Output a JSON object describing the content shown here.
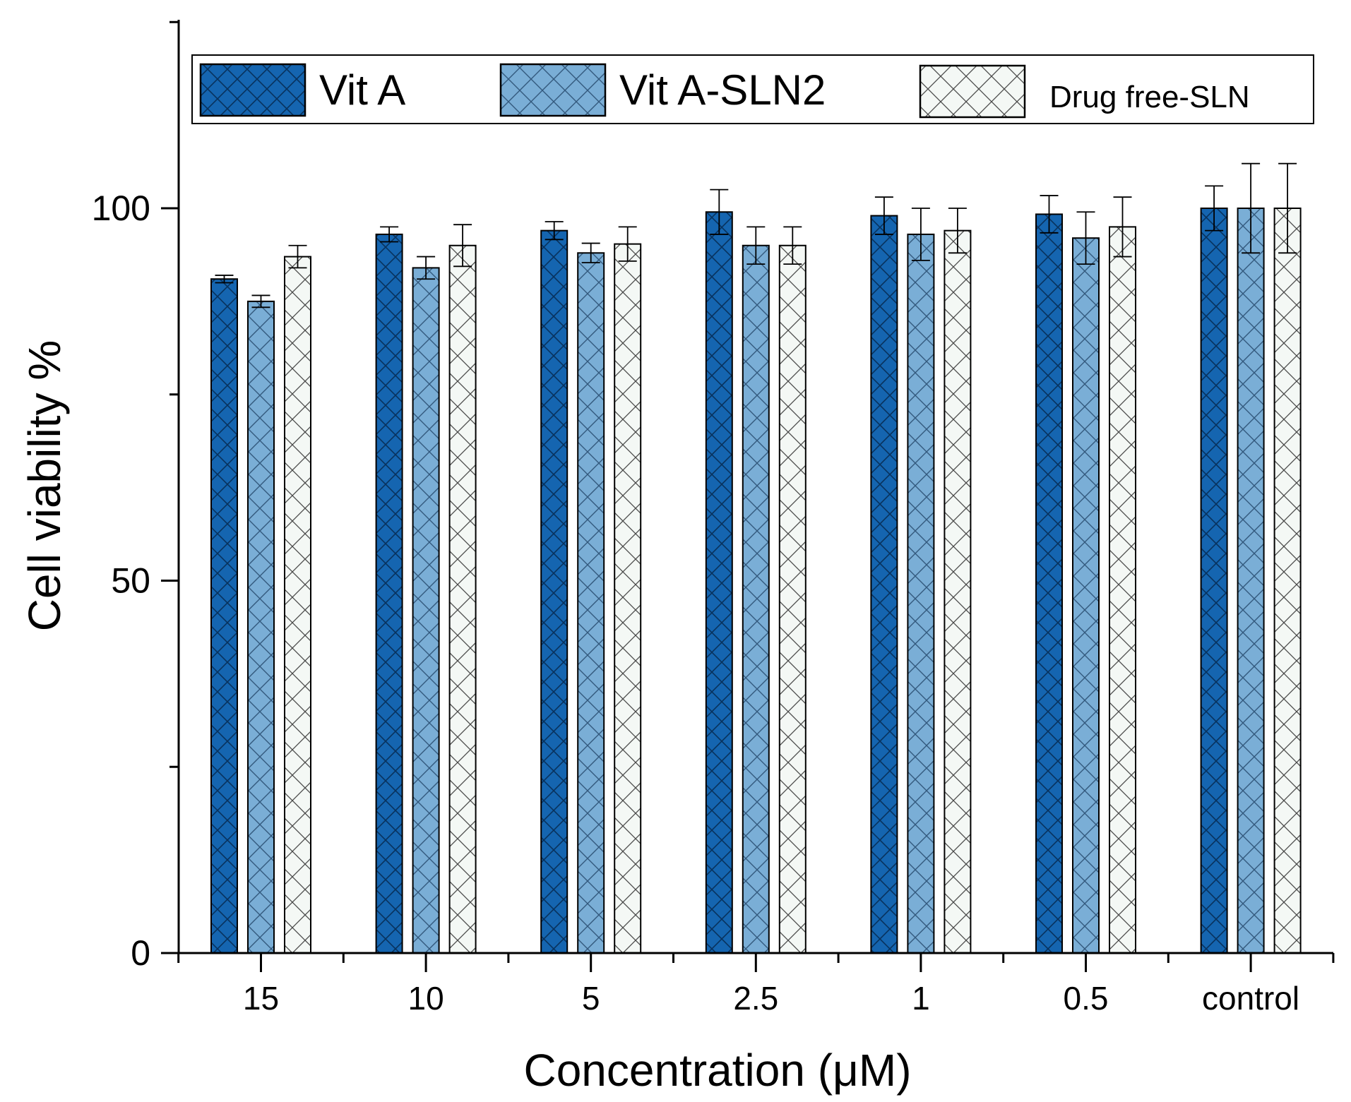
{
  "chart_data": {
    "type": "bar",
    "title": "",
    "xlabel": "Concentration (μM)",
    "ylabel": "Cell viability %",
    "categories": [
      "15",
      "10",
      "5",
      "2.5",
      "1",
      "0.5",
      "control"
    ],
    "ylim": [
      0,
      125
    ],
    "yticks": [
      0,
      50,
      100
    ],
    "series": [
      {
        "name": "Vit A",
        "color": "#1565b0",
        "hatch": "crosshatch-dense",
        "values": [
          90.5,
          96.5,
          97,
          99.5,
          99,
          99.2,
          100
        ],
        "errors": [
          0.5,
          1.0,
          1.2,
          3.0,
          2.5,
          2.5,
          3.0
        ]
      },
      {
        "name": "Vit A-SLN2",
        "color": "#7aaed6",
        "hatch": "crosshatch",
        "values": [
          87.5,
          92,
          94,
          95,
          96.5,
          96,
          100
        ],
        "errors": [
          0.8,
          1.5,
          1.3,
          2.5,
          3.5,
          3.5,
          6.0
        ]
      },
      {
        "name": "Drug free-SLN",
        "color": "#f4f8f5",
        "hatch": "crosshatch-sparse",
        "values": [
          93.5,
          95,
          95.2,
          95,
          97,
          97.5,
          100
        ],
        "errors": [
          1.5,
          2.8,
          2.3,
          2.5,
          3.0,
          4.0,
          6.0
        ]
      }
    ],
    "legend_position": "top",
    "grid": false
  }
}
